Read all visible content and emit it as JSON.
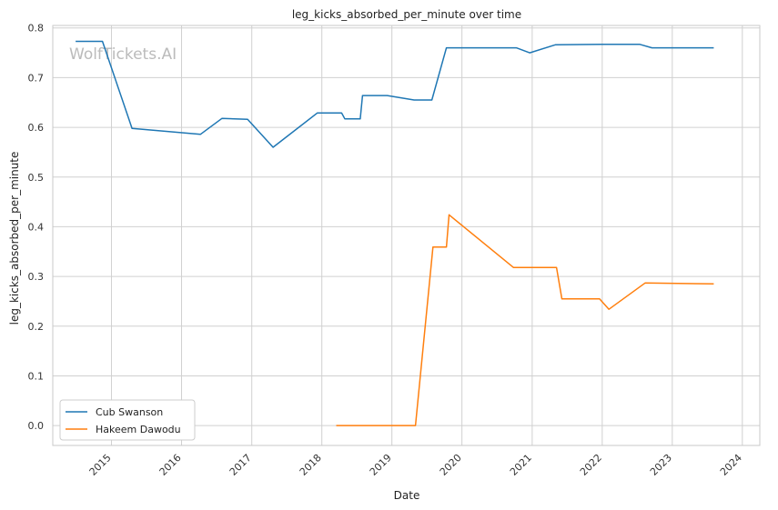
{
  "watermark": "WolfTickets.AI",
  "colors": {
    "cub": "#1f77b4",
    "hakeem": "#ff7f0e",
    "grid": "#d0d0d0",
    "frame": "#c8c8c8"
  },
  "chart_data": {
    "type": "line",
    "title": "leg_kicks_absorbed_per_minute over time",
    "xlabel": "Date",
    "ylabel": "leg_kicks_absorbed_per_minute",
    "xlim": [
      "2014-03-01",
      "2024-04-01"
    ],
    "ylim": [
      -0.04,
      0.805
    ],
    "x_ticks": [
      "2015",
      "2016",
      "2017",
      "2018",
      "2019",
      "2020",
      "2021",
      "2022",
      "2023",
      "2024"
    ],
    "y_ticks": [
      "0.0",
      "0.1",
      "0.2",
      "0.3",
      "0.4",
      "0.5",
      "0.6",
      "0.7",
      "0.8"
    ],
    "grid": true,
    "legend_position": "lower-left",
    "series": [
      {
        "name": "Cub Swanson",
        "color_key": "cub",
        "points": [
          [
            "2014-06-28",
            0.773
          ],
          [
            "2014-11-15",
            0.773
          ],
          [
            "2015-04-18",
            0.598
          ],
          [
            "2016-04-09",
            0.586
          ],
          [
            "2016-07-30",
            0.618
          ],
          [
            "2016-12-10",
            0.616
          ],
          [
            "2017-04-22",
            0.56
          ],
          [
            "2017-12-09",
            0.629
          ],
          [
            "2018-04-14",
            0.629
          ],
          [
            "2018-05-01",
            0.617
          ],
          [
            "2018-07-20",
            0.617
          ],
          [
            "2018-08-01",
            0.664
          ],
          [
            "2018-12-08",
            0.664
          ],
          [
            "2019-04-27",
            0.655
          ],
          [
            "2019-07-28",
            0.655
          ],
          [
            "2019-10-12",
            0.76
          ],
          [
            "2020-10-10",
            0.76
          ],
          [
            "2020-12-19",
            0.75
          ],
          [
            "2021-05-01",
            0.766
          ],
          [
            "2021-12-31",
            0.767
          ],
          [
            "2022-07-16",
            0.767
          ],
          [
            "2022-09-17",
            0.76
          ],
          [
            "2023-08-05",
            0.76
          ]
        ]
      },
      {
        "name": "Hakeem Dawodu",
        "color_key": "hakeem",
        "points": [
          [
            "2018-03-17",
            0.0
          ],
          [
            "2019-05-04",
            0.0
          ],
          [
            "2019-08-03",
            0.359
          ],
          [
            "2019-10-12",
            0.359
          ],
          [
            "2019-10-26",
            0.424
          ],
          [
            "2020-09-26",
            0.318
          ],
          [
            "2021-05-08",
            0.318
          ],
          [
            "2021-06-05",
            0.255
          ],
          [
            "2021-12-18",
            0.255
          ],
          [
            "2022-02-05",
            0.234
          ],
          [
            "2022-08-13",
            0.287
          ],
          [
            "2023-08-05",
            0.285
          ]
        ]
      }
    ]
  }
}
